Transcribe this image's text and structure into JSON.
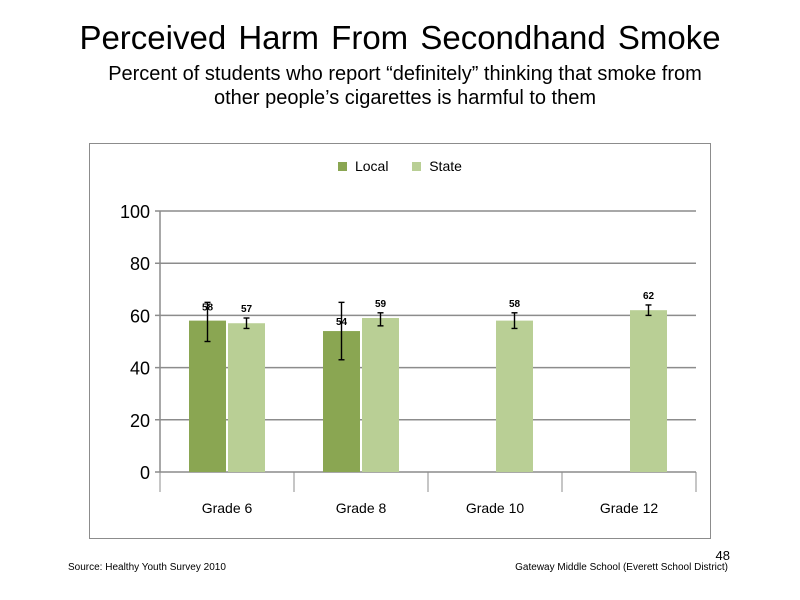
{
  "title": "Perceived  Harm From Secondhand  Smoke",
  "subtitle_line1": "Percent of students who report “definitely” thinking that smoke from",
  "subtitle_line2": "other people’s cigarettes is harmful to them",
  "footer": {
    "source": "Source: Healthy Youth Survey 2010",
    "school": "Gateway Middle  School (Everett School District)",
    "page": "48"
  },
  "colors": {
    "local": "#8aa652",
    "state": "#b9cf95",
    "grid": "#8c8c8c"
  },
  "chart_data": {
    "type": "bar",
    "categories": [
      "Grade 6",
      "Grade 8",
      "Grade 10",
      "Grade 12"
    ],
    "series": [
      {
        "name": "Local",
        "values": [
          58,
          54,
          null,
          null
        ],
        "labels": [
          "58",
          "54",
          "",
          ""
        ],
        "error_low": [
          50,
          43,
          null,
          null
        ],
        "error_high": [
          65,
          65,
          null,
          null
        ]
      },
      {
        "name": "State",
        "values": [
          57,
          59,
          58,
          62
        ],
        "labels": [
          "57",
          "59",
          "58",
          "62"
        ],
        "error_low": [
          55,
          56,
          55,
          60
        ],
        "error_high": [
          59,
          61,
          61,
          64
        ]
      }
    ],
    "yticks": [
      "0",
      "20",
      "40",
      "60",
      "80",
      "100"
    ],
    "ylim": [
      0,
      100
    ],
    "grid": true,
    "legend": "top"
  }
}
